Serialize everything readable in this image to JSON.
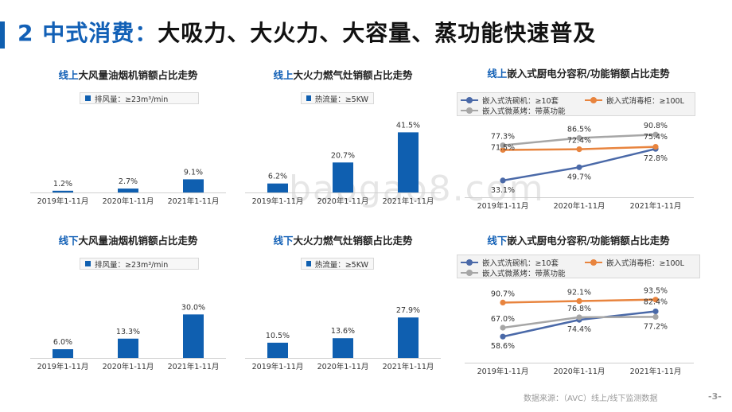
{
  "header": {
    "num": "2",
    "title_prefix": "中式消费：",
    "title_rest": "大吸力、大火力、大容量、蒸功能快速普及"
  },
  "watermark": "baogao8.com",
  "source": "数据来源：（AVC）线上/线下监测数据",
  "page_number": "-3-",
  "bar_color": "#0f5fb0",
  "chart_data": [
    {
      "id": "online-hood",
      "type": "bar",
      "title_highlight": "线上",
      "title_rest": "大风量油烟机销额占比走势",
      "legend": "排风量：≥23m³/min",
      "categories": [
        "2019年1-11月",
        "2020年1-11月",
        "2021年1-11月"
      ],
      "values": [
        1.2,
        2.7,
        9.1
      ],
      "labels": [
        "1.2%",
        "2.7%",
        "9.1%"
      ],
      "ylim": [
        0,
        45
      ]
    },
    {
      "id": "online-stove",
      "type": "bar",
      "title_highlight": "线上",
      "title_rest": "大火力燃气灶销额占比走势",
      "legend": "热流量：≥5KW",
      "categories": [
        "2019年1-11月",
        "2020年1-11月",
        "2021年1-11月"
      ],
      "values": [
        6.2,
        20.7,
        41.5
      ],
      "labels": [
        "6.2%",
        "20.7%",
        "41.5%"
      ],
      "ylim": [
        0,
        45
      ]
    },
    {
      "id": "online-embedded",
      "type": "line",
      "title_highlight": "线上",
      "title_rest": "嵌入式厨电分容积/功能销额占比走势",
      "categories": [
        "2019年1-11月",
        "2020年1-11月",
        "2021年1-11月"
      ],
      "series": [
        {
          "name": "嵌入式洗碗机：≥10套",
          "color": "#4a69a8",
          "values": [
            33.1,
            49.7,
            72.8
          ],
          "labels": [
            "33.1%",
            "49.7%",
            "72.8%"
          ]
        },
        {
          "name": "嵌入式消毒柜：≥100L",
          "color": "#e8843e",
          "values": [
            71.5,
            72.4,
            75.4
          ],
          "labels": [
            "71.5%",
            "72.4%",
            "75.4%"
          ]
        },
        {
          "name": "嵌入式微蒸烤：带蒸功能",
          "color": "#a6a6a6",
          "values": [
            77.3,
            86.5,
            90.8
          ],
          "labels": [
            "77.3%",
            "86.5%",
            "90.8%"
          ]
        }
      ],
      "ylim": [
        20,
        100
      ]
    },
    {
      "id": "offline-hood",
      "type": "bar",
      "title_highlight": "线下",
      "title_rest": "大风量油烟机销额占比走势",
      "legend": "排风量：≥23m³/min",
      "categories": [
        "2019年1-11月",
        "2020年1-11月",
        "2021年1-11月"
      ],
      "values": [
        6.0,
        13.3,
        30.0
      ],
      "labels": [
        "6.0%",
        "13.3%",
        "30.0%"
      ],
      "ylim": [
        0,
        45
      ]
    },
    {
      "id": "offline-stove",
      "type": "bar",
      "title_highlight": "线下",
      "title_rest": "大火力燃气灶销额占比走势",
      "legend": "热流量：≥5KW",
      "categories": [
        "2019年1-11月",
        "2020年1-11月",
        "2021年1-11月"
      ],
      "values": [
        10.5,
        13.6,
        27.9
      ],
      "labels": [
        "10.5%",
        "13.6%",
        "27.9%"
      ],
      "ylim": [
        0,
        45
      ]
    },
    {
      "id": "offline-embedded",
      "type": "line",
      "title_highlight": "线下",
      "title_rest": "嵌入式厨电分容积/功能销额占比走势",
      "categories": [
        "2019年1-11月",
        "2020年1-11月",
        "2021年1-11月"
      ],
      "series": [
        {
          "name": "嵌入式洗碗机：≥10套",
          "color": "#4a69a8",
          "values": [
            58.6,
            74.4,
            82.4
          ],
          "labels": [
            "58.6%",
            "74.4%",
            "82.4%"
          ]
        },
        {
          "name": "嵌入式消毒柜：≥100L",
          "color": "#e8843e",
          "values": [
            90.7,
            92.1,
            93.5
          ],
          "labels": [
            "90.7%",
            "92.1%",
            "93.5%"
          ]
        },
        {
          "name": "嵌入式微蒸烤：带蒸功能",
          "color": "#a6a6a6",
          "values": [
            67.0,
            76.8,
            77.2
          ],
          "labels": [
            "67.0%",
            "76.8%",
            "77.2%"
          ]
        }
      ],
      "ylim": [
        40,
        100
      ]
    }
  ]
}
